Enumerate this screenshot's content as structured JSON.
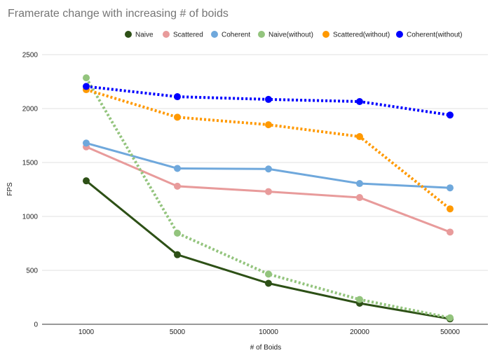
{
  "chart_data": {
    "type": "line",
    "title": "Framerate change with increasing # of boids",
    "xlabel": "# of Boids",
    "ylabel": "FPS",
    "categories": [
      "1000",
      "5000",
      "10000",
      "20000",
      "50000"
    ],
    "ylim": [
      0,
      2500
    ],
    "yticks": [
      "0",
      "500",
      "1000",
      "1500",
      "2000",
      "2500"
    ],
    "grid": true,
    "legend": "top",
    "series": [
      {
        "name": "Naive",
        "values": [
          1330,
          645,
          380,
          195,
          50
        ],
        "color": "#2d5016",
        "style": "solid"
      },
      {
        "name": "Scattered",
        "values": [
          1645,
          1280,
          1230,
          1175,
          855
        ],
        "color": "#e89b9b",
        "style": "solid"
      },
      {
        "name": "Coherent",
        "values": [
          1680,
          1445,
          1440,
          1305,
          1265
        ],
        "color": "#6fa8dc",
        "style": "solid"
      },
      {
        "name": "Naive(without)",
        "values": [
          2285,
          845,
          465,
          230,
          60
        ],
        "color": "#93c47d",
        "style": "dotted"
      },
      {
        "name": "Scattered(without)",
        "values": [
          2175,
          1920,
          1850,
          1740,
          1070
        ],
        "color": "#ff9900",
        "style": "dotted"
      },
      {
        "name": "Coherent(without)",
        "values": [
          2205,
          2110,
          2085,
          2065,
          1940
        ],
        "color": "#0000ff",
        "style": "dotted"
      }
    ]
  }
}
